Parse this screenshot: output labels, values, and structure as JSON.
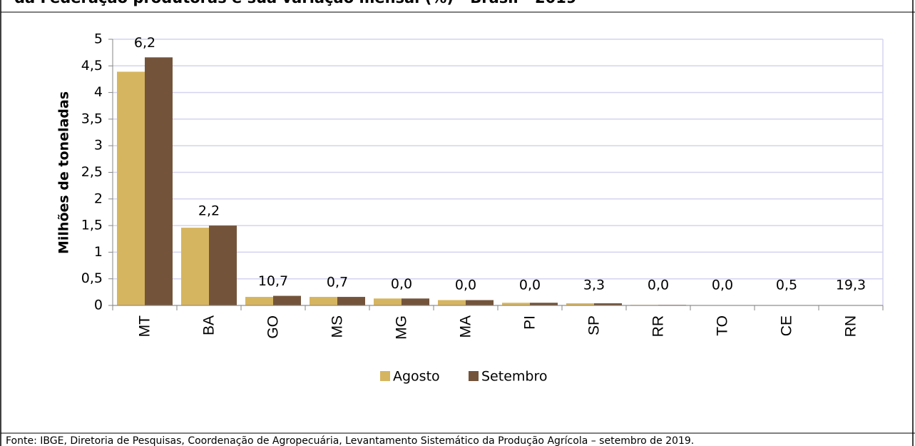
{
  "chart_data": {
    "type": "bar",
    "title": "da Federação produtoras e sua variação mensal (%) - Brasil - 2019",
    "y_label": "Milhões de toneladas",
    "categories": [
      "MT",
      "BA",
      "GO",
      "MS",
      "MG",
      "MA",
      "PI",
      "SP",
      "RR",
      "TO",
      "CE",
      "RN"
    ],
    "series": [
      {
        "name": "Agosto",
        "color": "#d6b560",
        "values": [
          4.39,
          1.46,
          0.16,
          0.16,
          0.13,
          0.1,
          0.05,
          0.04,
          0.01,
          0.005,
          0.005,
          0.002
        ]
      },
      {
        "name": "Setembro",
        "color": "#73543b",
        "values": [
          4.66,
          1.5,
          0.18,
          0.16,
          0.13,
          0.1,
          0.05,
          0.04,
          0.01,
          0.005,
          0.005,
          0.002
        ]
      }
    ],
    "annotations": [
      "6,2",
      "2,2",
      "10,7",
      "0,7",
      "0,0",
      "0,0",
      "0,0",
      "3,3",
      "0,0",
      "0,0",
      "0,5",
      "19,3"
    ],
    "ylim": [
      0,
      5
    ],
    "yticks": [
      0,
      {
        "value": 0.5,
        "label": "0,5"
      },
      1,
      {
        "value": 1.5,
        "label": "1,5"
      },
      2,
      {
        "value": 2.5,
        "label": "2,5"
      },
      3,
      {
        "value": 3.5,
        "label": "3,5"
      },
      4,
      {
        "value": 4.5,
        "label": "4,5"
      },
      5
    ],
    "grid": true,
    "source": "Fonte: IBGE, Diretoria de Pesquisas, Coordenação de Agropecuária, Levantamento Sistemático da Produção Agrícola – setembro de 2019."
  }
}
